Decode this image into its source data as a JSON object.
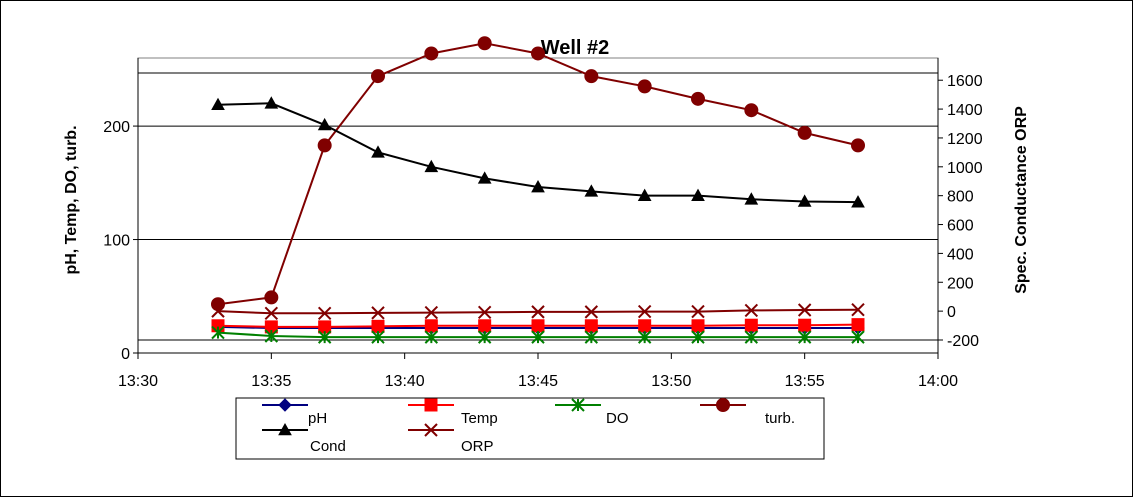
{
  "chart_data": {
    "type": "line",
    "title": "Well #2",
    "ylabel_left": "pH, Temp, DO, turb.",
    "ylabel_right": "Spec. Conductance ORP",
    "x_ticks": [
      "13:30",
      "13:35",
      "13:40",
      "13:45",
      "13:50",
      "13:55",
      "14:00"
    ],
    "x_range": [
      "13:30",
      "14:00"
    ],
    "y_left_range": [
      0,
      260
    ],
    "y_left_ticks": [
      "0",
      "100",
      "200"
    ],
    "y_right_range": [
      -200,
      1650
    ],
    "y_right_ticks": [
      "-200",
      "0",
      "200",
      "400",
      "600",
      "800",
      "1000",
      "1200",
      "1400",
      "1600"
    ],
    "x": [
      "13:33",
      "13:35",
      "13:37",
      "13:39",
      "13:41",
      "13:43",
      "13:45",
      "13:47",
      "13:49",
      "13:51",
      "13:53",
      "13:55",
      "13:57"
    ],
    "series": [
      {
        "name": "pH",
        "axis": "left",
        "color": "#000080",
        "marker": "diamond",
        "values": [
          23,
          22,
          22,
          22,
          22,
          22,
          22,
          22,
          22,
          22,
          22,
          22,
          22
        ]
      },
      {
        "name": "Temp",
        "axis": "left",
        "color": "#ff0000",
        "marker": "square",
        "values": [
          24,
          23,
          23,
          23.5,
          24,
          24,
          24,
          24,
          24,
          24,
          24.5,
          24.5,
          25
        ]
      },
      {
        "name": "DO",
        "axis": "left",
        "color": "#008000",
        "marker": "asterisk",
        "values": [
          18,
          15,
          14,
          14,
          14,
          14,
          14,
          14,
          14,
          14,
          14,
          14,
          14
        ]
      },
      {
        "name": "turb.",
        "axis": "left",
        "color": "#800000",
        "marker": "circle",
        "values": [
          43,
          49,
          183,
          244,
          264,
          273,
          264,
          244,
          235,
          224,
          214,
          194,
          183
        ]
      },
      {
        "name": "Cond",
        "axis": "right",
        "color": "#000000",
        "marker": "triangle",
        "values": [
          1430,
          1440,
          1290,
          1100,
          1000,
          920,
          860,
          830,
          800,
          800,
          775,
          760,
          755
        ]
      },
      {
        "name": "ORP",
        "axis": "right",
        "color": "#800000",
        "marker": "x",
        "values": [
          0,
          -15,
          -15,
          -12,
          -10,
          -8,
          -5,
          -5,
          -3,
          -3,
          5,
          8,
          10
        ]
      }
    ],
    "grid": true,
    "legend_placement": "bottom-center"
  }
}
